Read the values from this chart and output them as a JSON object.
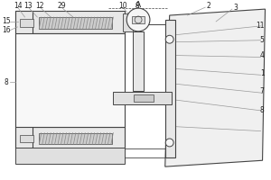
{
  "bg_color": "#ffffff",
  "line_color": "#999999",
  "dark_line": "#444444",
  "hatch_color": "#666666",
  "label_color": "#222222",
  "font_size": 5.5,
  "fig_width": 3.0,
  "fig_height": 2.0,
  "dpi": 100
}
